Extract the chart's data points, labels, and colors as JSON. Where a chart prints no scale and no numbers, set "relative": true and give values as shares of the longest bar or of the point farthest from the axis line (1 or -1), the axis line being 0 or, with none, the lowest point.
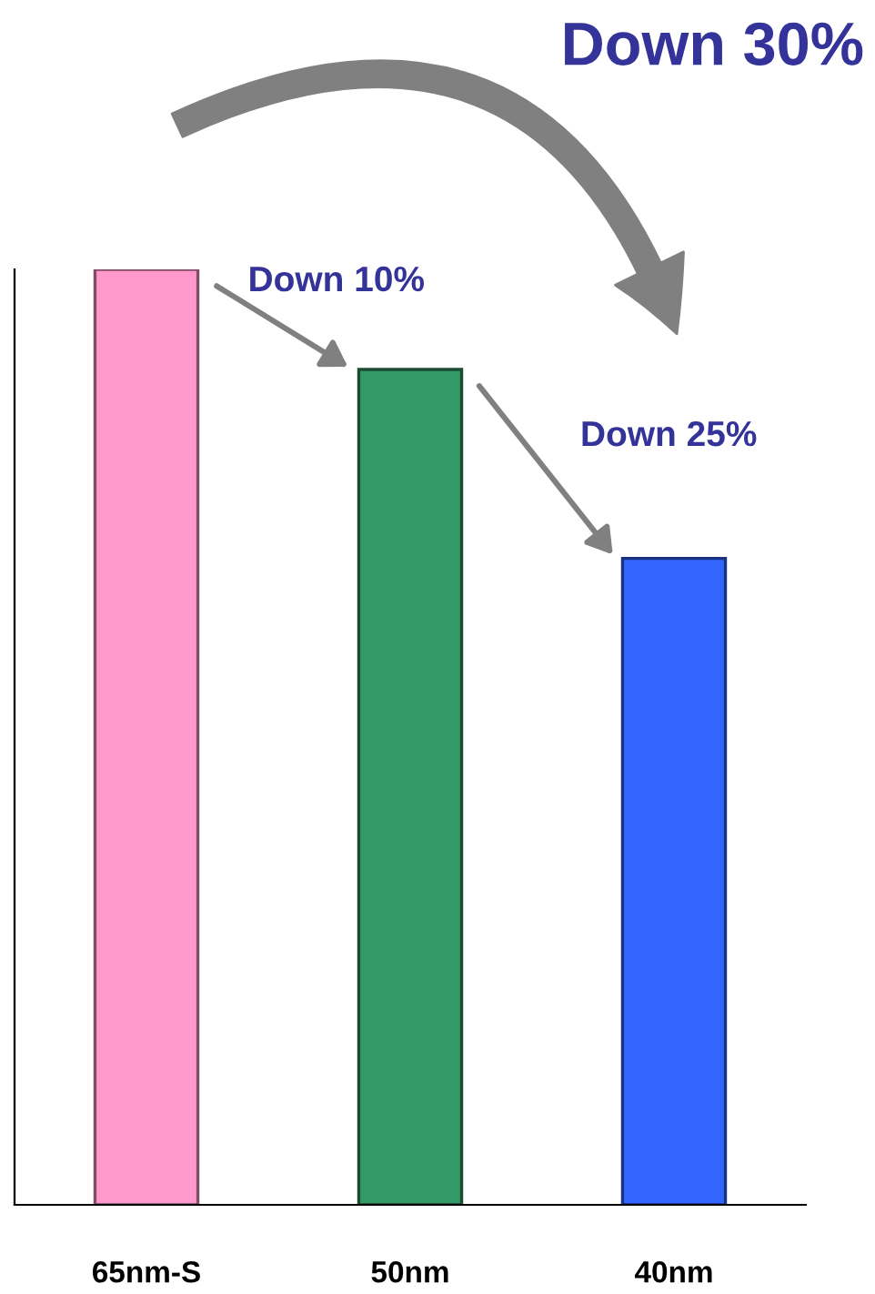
{
  "chart_data": {
    "type": "bar",
    "relative": true,
    "categories": [
      "65nm-S",
      "50nm",
      "40nm"
    ],
    "values": [
      1,
      0.893,
      0.691
    ],
    "colors": [
      "#ff99cc",
      "#339966",
      "#3366ff"
    ],
    "annotations": [
      "Down 10%",
      "Down 25%",
      "Down 30%"
    ],
    "grid": false,
    "legend": false
  }
}
